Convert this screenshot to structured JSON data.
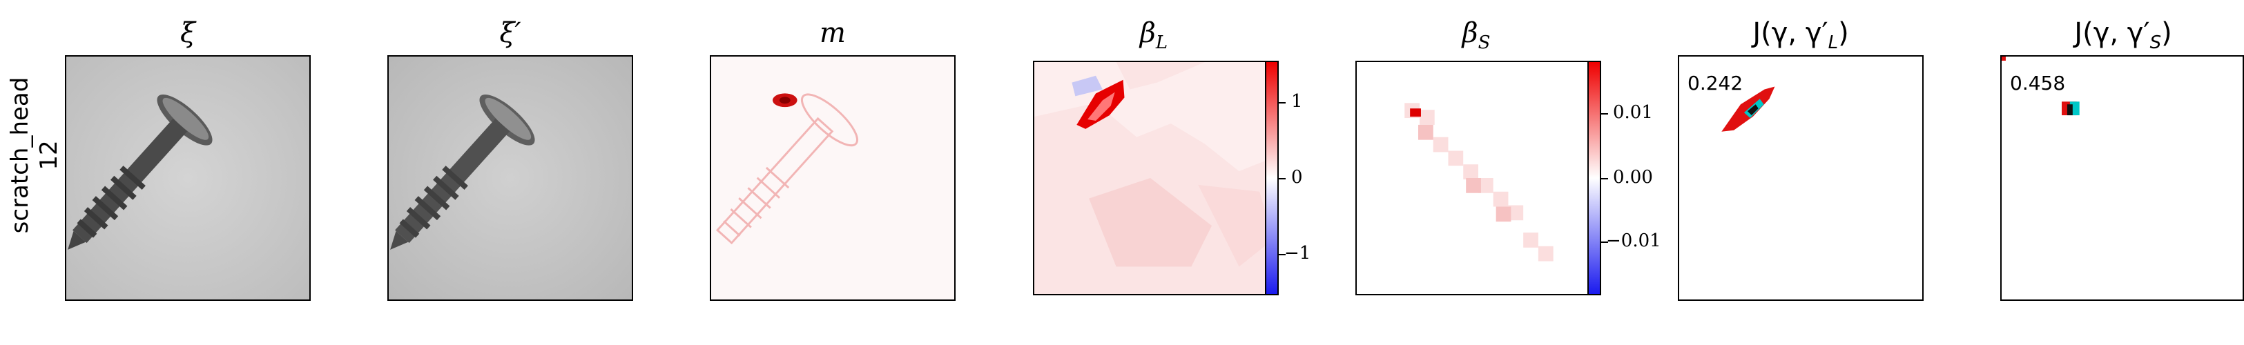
{
  "row": {
    "line1": "scratch_head",
    "line2": "12"
  },
  "panels": [
    {
      "title": "ξ",
      "kind": "image",
      "icon": "screw-grayscale-image"
    },
    {
      "title": "ξ′",
      "kind": "image",
      "icon": "screw-grayscale-image"
    },
    {
      "title": "m",
      "kind": "heatmap",
      "icon": "anomaly-map-image"
    },
    {
      "title_base": "β",
      "title_sub": "L",
      "kind": "heatmap",
      "icon": "beta-l-map-image"
    },
    {
      "title_base": "β",
      "title_sub": "S",
      "kind": "heatmap",
      "icon": "beta-s-map-image"
    },
    {
      "title": "J(γ, γ′",
      "title_sub": "L",
      "title_end": ")",
      "kind": "overlap",
      "score": "0.242"
    },
    {
      "title": "J(γ, γ′",
      "title_sub": "S",
      "title_end": ")",
      "kind": "overlap",
      "score": "0.458"
    }
  ],
  "colorbars": [
    {
      "ticks": [
        "1",
        "0",
        "−1"
      ],
      "values": [
        1,
        0,
        -1
      ],
      "range": [
        -1.6,
        1.6
      ]
    },
    {
      "ticks": [
        "0.01",
        "0.00",
        "−0.01"
      ],
      "values": [
        0.01,
        0.0,
        -0.01
      ],
      "range": [
        -0.018,
        0.018
      ]
    }
  ],
  "colors": {
    "positive": "#ee0000",
    "negative": "#1a1aee",
    "neutral": "#ffffff",
    "overlap_a": "#e01010",
    "overlap_b": "#00c8c8"
  }
}
